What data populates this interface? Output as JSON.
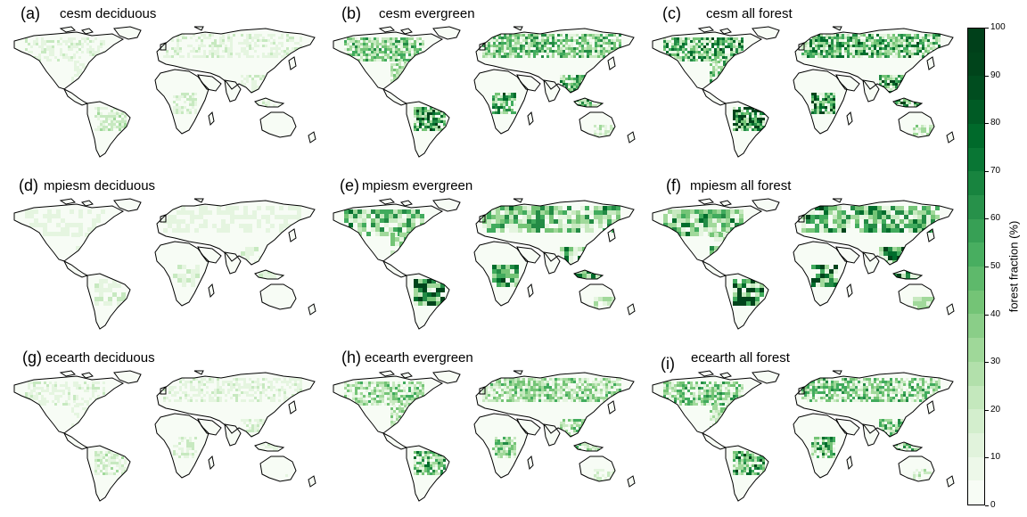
{
  "panels": [
    {
      "letter": "(a)",
      "title": "cesm deciduous",
      "intensity": 0.25
    },
    {
      "letter": "(b)",
      "title": "cesm evergreen",
      "intensity": 0.75
    },
    {
      "letter": "(c)",
      "title": "cesm all forest",
      "intensity": 0.9
    },
    {
      "letter": "(d)",
      "title": "mpiesm deciduous",
      "intensity": 0.22
    },
    {
      "letter": "(e)",
      "title": "mpiesm evergreen",
      "intensity": 0.8
    },
    {
      "letter": "(f)",
      "title": "mpiesm all forest",
      "intensity": 0.9
    },
    {
      "letter": "(g)",
      "title": "ecearth deciduous",
      "intensity": 0.25
    },
    {
      "letter": "(h)",
      "title": "ecearth evergreen",
      "intensity": 0.6
    },
    {
      "letter": "(i)",
      "title": "ecearth all forest",
      "intensity": 0.7
    }
  ],
  "colorbar": {
    "label": "forest fraction (%)",
    "ticks": [
      "0",
      "10",
      "20",
      "30",
      "40",
      "50",
      "60",
      "70",
      "80",
      "90",
      "100"
    ],
    "min": 0,
    "max": 100,
    "colors": [
      "#f7fcf5",
      "#e5f5e0",
      "#c7e9c0",
      "#a1d99b",
      "#74c476",
      "#41ab5d",
      "#238b45",
      "#006d2c",
      "#00441b"
    ]
  }
}
